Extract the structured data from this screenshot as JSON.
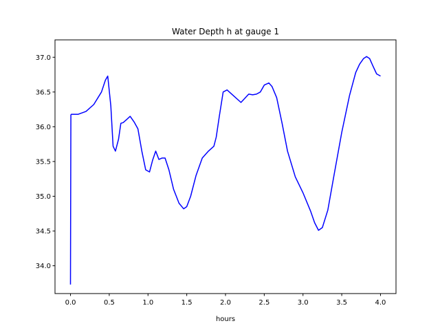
{
  "chart_data": {
    "type": "line",
    "title": "Water Depth h at gauge 1",
    "xlabel": "hours",
    "ylabel": "",
    "xlim": [
      -0.2,
      4.2
    ],
    "ylim": [
      33.6,
      37.25
    ],
    "grid": false,
    "x_ticks": [
      {
        "value": 0.0,
        "label": "0.0"
      },
      {
        "value": 0.5,
        "label": "0.5"
      },
      {
        "value": 1.0,
        "label": "1.0"
      },
      {
        "value": 1.5,
        "label": "1.5"
      },
      {
        "value": 2.0,
        "label": "2.0"
      },
      {
        "value": 2.5,
        "label": "2.5"
      },
      {
        "value": 3.0,
        "label": "3.0"
      },
      {
        "value": 3.5,
        "label": "3.5"
      },
      {
        "value": 4.0,
        "label": "4.0"
      }
    ],
    "y_ticks": [
      {
        "value": 34.0,
        "label": "34.0"
      },
      {
        "value": 34.5,
        "label": "34.5"
      },
      {
        "value": 35.0,
        "label": "35.0"
      },
      {
        "value": 35.5,
        "label": "35.5"
      },
      {
        "value": 36.0,
        "label": "36.0"
      },
      {
        "value": 36.5,
        "label": "36.5"
      },
      {
        "value": 37.0,
        "label": "37.0"
      }
    ],
    "series": [
      {
        "color": "#0000ff",
        "x": [
          0.0,
          0.005,
          0.01,
          0.1,
          0.2,
          0.3,
          0.4,
          0.45,
          0.48,
          0.52,
          0.55,
          0.58,
          0.62,
          0.65,
          0.68,
          0.72,
          0.77,
          0.82,
          0.87,
          0.92,
          0.97,
          1.02,
          1.06,
          1.1,
          1.14,
          1.18,
          1.22,
          1.27,
          1.33,
          1.4,
          1.46,
          1.5,
          1.55,
          1.62,
          1.7,
          1.78,
          1.85,
          1.88,
          1.92,
          1.97,
          2.02,
          2.1,
          2.2,
          2.3,
          2.35,
          2.4,
          2.45,
          2.5,
          2.56,
          2.6,
          2.66,
          2.73,
          2.8,
          2.9,
          3.0,
          3.1,
          3.15,
          3.2,
          3.25,
          3.32,
          3.4,
          3.5,
          3.6,
          3.68,
          3.73,
          3.78,
          3.82,
          3.86,
          3.9,
          3.95,
          4.0
        ],
        "values": [
          33.73,
          36.17,
          36.18,
          36.18,
          36.22,
          36.32,
          36.5,
          36.67,
          36.73,
          36.3,
          35.72,
          35.65,
          35.82,
          36.05,
          36.06,
          36.1,
          36.15,
          36.07,
          35.97,
          35.65,
          35.38,
          35.35,
          35.52,
          35.65,
          35.53,
          35.55,
          35.55,
          35.38,
          35.1,
          34.9,
          34.82,
          34.85,
          35.0,
          35.3,
          35.55,
          35.65,
          35.72,
          35.85,
          36.15,
          36.5,
          36.53,
          36.45,
          36.35,
          36.47,
          36.46,
          36.47,
          36.5,
          36.6,
          36.63,
          36.58,
          36.42,
          36.05,
          35.65,
          35.28,
          35.05,
          34.78,
          34.62,
          34.51,
          34.55,
          34.8,
          35.3,
          35.92,
          36.45,
          36.78,
          36.9,
          36.98,
          37.01,
          36.98,
          36.88,
          36.76,
          36.73
        ]
      }
    ]
  }
}
